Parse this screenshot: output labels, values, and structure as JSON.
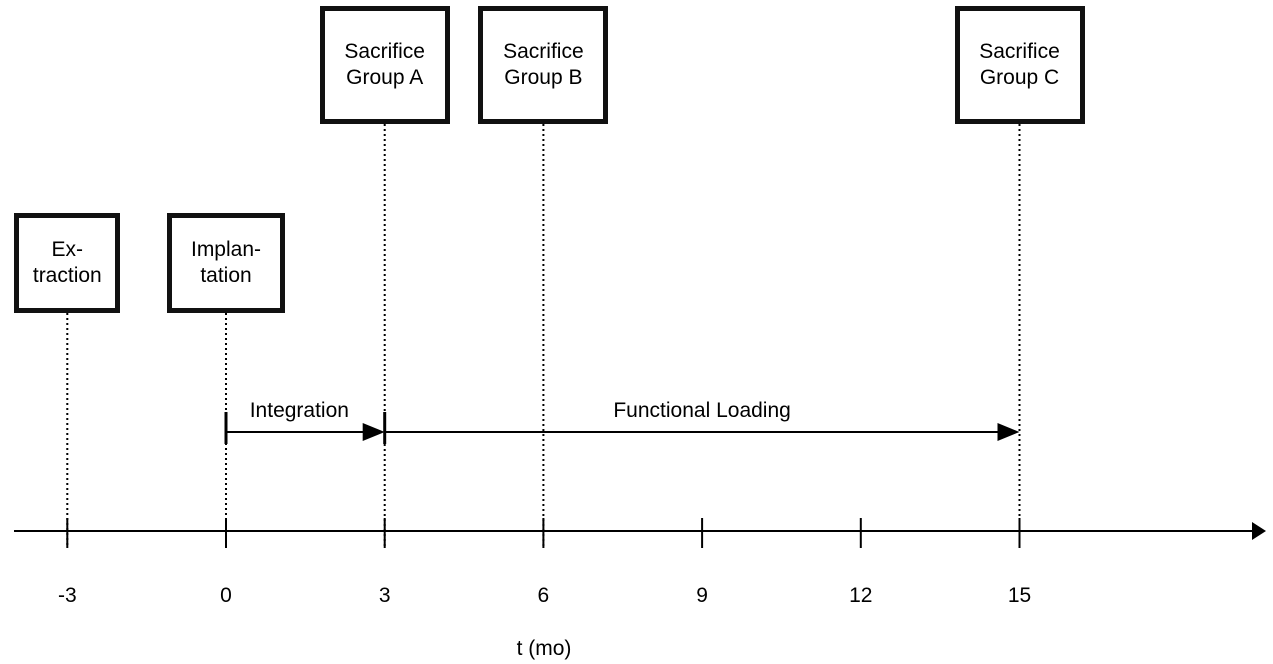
{
  "axis": {
    "label": "t (mo)",
    "min": -3,
    "max": 15,
    "ticks": [
      -3,
      0,
      3,
      6,
      9,
      12,
      15
    ]
  },
  "events": [
    {
      "id": "extraction",
      "t": -3,
      "lines": [
        "Ex-",
        "traction"
      ]
    },
    {
      "id": "implantation",
      "t": 0,
      "lines": [
        "Implan-",
        "tation"
      ]
    },
    {
      "id": "sacrifice-a",
      "t": 3,
      "lines": [
        "Sacrifice",
        "Group A"
      ]
    },
    {
      "id": "sacrifice-b",
      "t": 6,
      "lines": [
        "Sacrifice",
        "Group B"
      ]
    },
    {
      "id": "sacrifice-c",
      "t": 15,
      "lines": [
        "Sacrifice",
        "Group C"
      ]
    }
  ],
  "phases": [
    {
      "id": "integration",
      "label": "Integration",
      "start": 0,
      "end": 3
    },
    {
      "id": "functional-loading",
      "label": "Functional Loading",
      "start": 3,
      "end": 15
    }
  ]
}
